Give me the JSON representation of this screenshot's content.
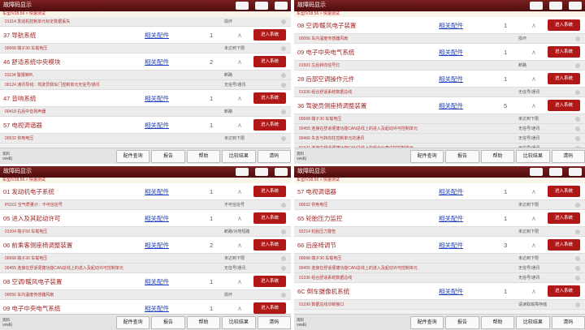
{
  "panels": [
    {
      "title": "故障码显示",
      "path": "车型/V28.56 > 快速测试",
      "items": [
        {
          "kind": "fault",
          "text": "01314 发动机控制单元标定数据丢失",
          "status": "损坏"
        },
        {
          "kind": "system",
          "name": "37 导航系统",
          "link": "相关配件",
          "count": "1",
          "button": "进入系统"
        },
        {
          "kind": "fault",
          "text": "00668 端子30 车载电压",
          "status": "未达到下限"
        },
        {
          "kind": "system",
          "name": "46 舒适系统中央模块",
          "link": "相关配件",
          "count": "2",
          "button": "进入系统"
        },
        {
          "kind": "fault",
          "text": "01134 警报喇叭",
          "status": "断路"
        },
        {
          "kind": "fault",
          "text": "00124 通讯导线：驾驶员侧车门控制单元无信号/通讯",
          "status": "无信号/通讯"
        },
        {
          "kind": "system",
          "name": "47 音响系统",
          "link": "相关配件",
          "count": "1",
          "button": "进入系统"
        },
        {
          "kind": "fault",
          "text": "00418 右后中音扬声器",
          "status": "断路"
        },
        {
          "kind": "system",
          "name": "57 电视调谐器",
          "link": "相关配件",
          "count": "1",
          "button": "进入系统"
        },
        {
          "kind": "fault",
          "text": "00532 供电电压",
          "status": "未达到下限"
        }
      ],
      "info": [
        "资料",
        "VIN码"
      ],
      "buttons": [
        "配件查询",
        "报告",
        "帮助",
        "比较结果",
        "清码"
      ]
    },
    {
      "title": "故障码显示",
      "path": "车型/V28.56 > 快速测试",
      "items": [
        {
          "kind": "system",
          "name": "08 空调/暖风电子装置",
          "link": "相关配件",
          "count": "1",
          "button": "进入系统"
        },
        {
          "kind": "fault",
          "text": "00056 车内温度传感器风扇",
          "status": "损坏"
        },
        {
          "kind": "system",
          "name": "09 电子中央电气系统",
          "link": "相关配件",
          "count": "1",
          "button": "进入系统"
        },
        {
          "kind": "fault",
          "text": "01501 左后转向信号灯",
          "status": "断路"
        },
        {
          "kind": "system",
          "name": "28 后部空调操作元件",
          "link": "相关配件",
          "count": "1",
          "button": "进入系统"
        },
        {
          "kind": "fault",
          "text": "01336 组合舒适系统数据总线",
          "status": "无信号/通讯"
        },
        {
          "kind": "system",
          "name": "36 驾驶员侧座椅调整装置",
          "link": "相关配件",
          "count": "5",
          "button": "进入系统"
        },
        {
          "kind": "fault",
          "text": "00668 端子30 车载电压",
          "status": "未达到下限"
        },
        {
          "kind": "fault",
          "text": "00455 连接在舒适便捷功能CAN总线上的进入及起动许可控制单元",
          "status": "无信号/通讯"
        },
        {
          "kind": "fault",
          "text": "00466 失去与转向柱控制单元的通讯",
          "status": "无信号/通讯"
        },
        {
          "kind": "fault",
          "text": "01341 连接在舒适便捷功能CAN总线上的组合仪表中控控制单元",
          "status": "无信号/通讯"
        }
      ],
      "info": [
        "资料",
        "VIN码"
      ],
      "buttons": [
        "配件查询",
        "报告",
        "帮助",
        "比较结果",
        "清码"
      ]
    },
    {
      "title": "故障码显示",
      "path": "车型/V28.56 > 快速测试",
      "items": [
        {
          "kind": "system",
          "name": "01 发动机电子系统",
          "link": "相关配件",
          "count": "1",
          "button": "进入系统"
        },
        {
          "kind": "fault",
          "text": "P0101 空气质量计：不可信信号",
          "status": "不可信信号"
        },
        {
          "kind": "system",
          "name": "05 进入及其起动许可",
          "link": "相关配件",
          "count": "1",
          "button": "进入系统"
        },
        {
          "kind": "fault",
          "text": "01304 端子50 车载电压",
          "status": "断路/对地短路"
        },
        {
          "kind": "system",
          "name": "06 前乘客侧座椅调整装置",
          "link": "相关配件",
          "count": "2",
          "button": "进入系统"
        },
        {
          "kind": "fault",
          "text": "00668 端子30 车载电压",
          "status": "未达到下限"
        },
        {
          "kind": "fault",
          "text": "00455 连接在舒适便捷功能CAN总线上的进入及起动许可控制单元",
          "status": "无信号/通讯"
        },
        {
          "kind": "system",
          "name": "08 空调/暖风电子装置",
          "link": "相关配件",
          "count": "1",
          "button": "进入系统"
        },
        {
          "kind": "fault",
          "text": "00056 车内温度传感器风扇",
          "status": "损坏"
        },
        {
          "kind": "system",
          "name": "09 电子中央电气系统",
          "link": "相关配件",
          "count": "1",
          "button": "进入系统"
        }
      ],
      "info": [
        "资料",
        "VIN码"
      ],
      "buttons": [
        "配件查询",
        "报告",
        "帮助",
        "比较结果",
        "清码"
      ]
    },
    {
      "title": "故障码显示",
      "path": "车型/V28.56 > 快速测试",
      "items": [
        {
          "kind": "system",
          "name": "57 电视调谐器",
          "link": "相关配件",
          "count": "1",
          "button": "进入系统"
        },
        {
          "kind": "fault",
          "text": "00532 供电电压",
          "status": "未达到下限"
        },
        {
          "kind": "system",
          "name": "65 轮胎压力监控",
          "link": "相关配件",
          "count": "1",
          "button": "进入系统"
        },
        {
          "kind": "fault",
          "text": "02214 轮胎压力警告",
          "status": "未达到下限"
        },
        {
          "kind": "system",
          "name": "66 后座椅调节",
          "link": "相关配件",
          "count": "3",
          "button": "进入系统"
        },
        {
          "kind": "fault",
          "text": "00668 端子30 车载电压",
          "status": "未达到下限"
        },
        {
          "kind": "fault",
          "text": "00455 连接在舒适便捷功能CAN总线上的进入及起动许可控制单元",
          "status": "无信号/通讯"
        },
        {
          "kind": "fault",
          "text": "01336 组合舒适系统数据总线",
          "status": "无信号/通讯"
        },
        {
          "kind": "system",
          "name": "6C 倒车摄像机系统",
          "link": "相关配件",
          "count": "1",
          "button": "进入系统"
        },
        {
          "kind": "fault",
          "text": "01299 数据总线诊断接口",
          "status": "请读取故障存储"
        }
      ],
      "info": [
        "资料",
        "VIN码"
      ],
      "buttons": [
        "配件查询",
        "报告",
        "帮助",
        "比较结果",
        "清码"
      ]
    }
  ]
}
